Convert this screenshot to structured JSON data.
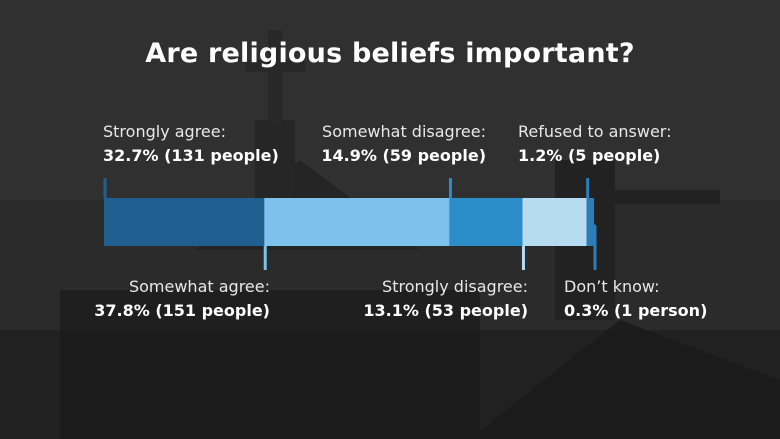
{
  "title": "Are religious beliefs important?",
  "colors": {
    "strongly_agree": "#1f5f8f",
    "somewhat_agree": "#7cc2ec",
    "strongly_disagree": "#2b8ec8",
    "somewhat_disagree": "#b6dcf2",
    "dont_know": "#2a7fba",
    "refused": "#2a7fba"
  },
  "chart_data": {
    "type": "bar",
    "orientation": "horizontal-stacked",
    "title": "Are religious beliefs important?",
    "series": [
      {
        "name": "Strongly agree",
        "value": 32.7,
        "label": "32.7% (131 people)",
        "color": "#1f5f8f"
      },
      {
        "name": "Somewhat agree",
        "value": 37.8,
        "label": "37.8% (151 people)",
        "color": "#7cc2ec"
      },
      {
        "name": "Somewhat disagree",
        "value": 14.9,
        "label": "14.9% (59 people)",
        "color": "#2b8ec8"
      },
      {
        "name": "Strongly disagree",
        "value": 13.1,
        "label": "13.1% (53 people)",
        "color": "#b6dcf2"
      },
      {
        "name": "Refused to answer",
        "value": 1.2,
        "label": "1.2% (5 people)",
        "color": "#2a7fba"
      },
      {
        "name": "Don't know",
        "value": 0.3,
        "label": "0.3% (1 person)",
        "color": "#2a7fba"
      }
    ],
    "labels": [
      {
        "name": "Strongly agree:",
        "value": "32.7% (131 people)"
      },
      {
        "name": "Somewhat disagree:",
        "value": "14.9% (59 people)"
      },
      {
        "name": "Refused to answer:",
        "value": "1.2% (5 people)"
      },
      {
        "name": "Somewhat agree:",
        "value": "37.8% (151 people)"
      },
      {
        "name": "Strongly disagree:",
        "value": "13.1% (53 people)"
      },
      {
        "name": "Don’t know:",
        "value": "0.3% (1 person)"
      }
    ]
  }
}
